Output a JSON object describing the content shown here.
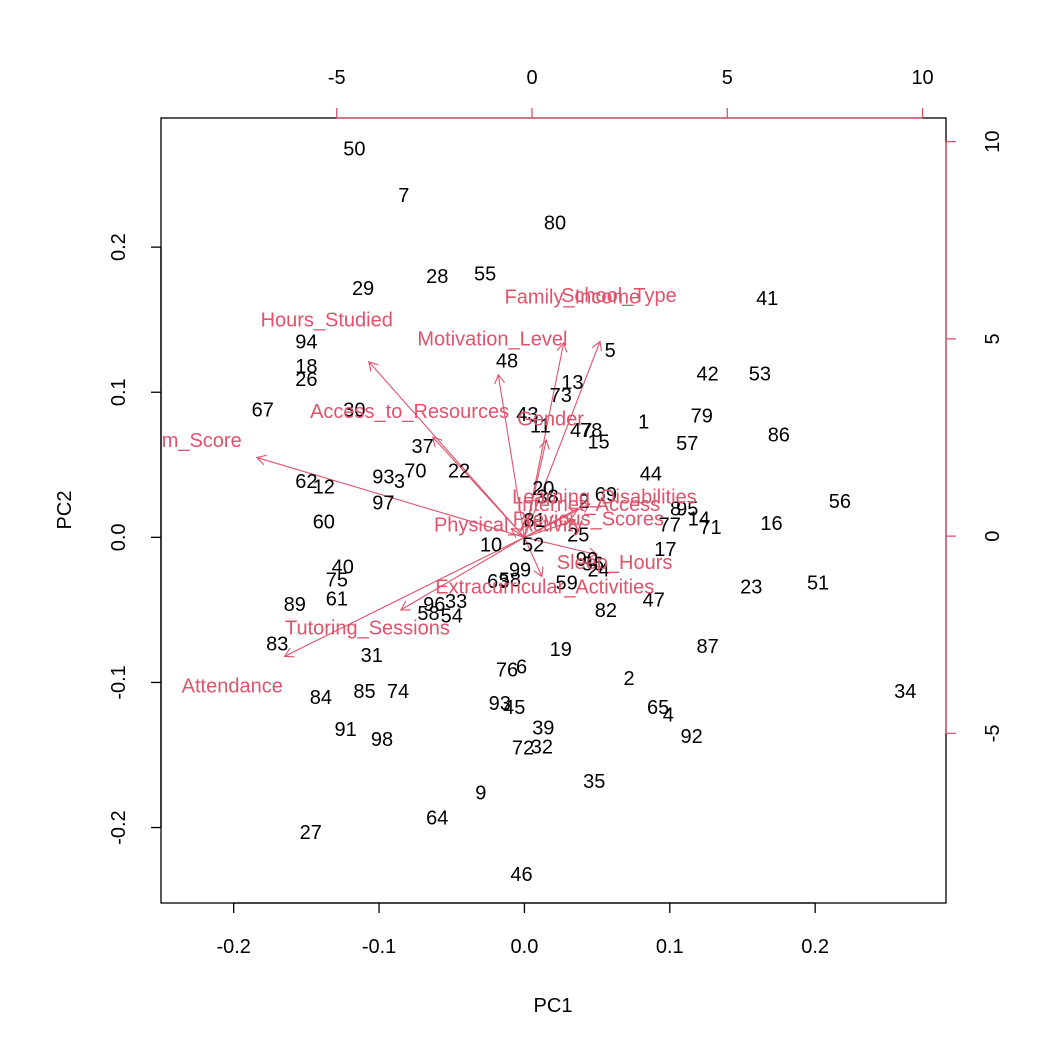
{
  "chart_data": {
    "type": "scatter",
    "subtype": "biplot",
    "xlabel": "PC1",
    "ylabel": "PC2",
    "xlim": [
      -0.25,
      0.29
    ],
    "ylim": [
      -0.252,
      0.289
    ],
    "top_lim": [
      -9.5,
      10.6
    ],
    "right_lim": [
      -9.3,
      10.6
    ],
    "bottom_ticks": [
      "-0.2",
      "-0.1",
      "0.0",
      "0.1",
      "0.2"
    ],
    "left_ticks": [
      "-0.2",
      "-0.1",
      "0.0",
      "0.1",
      "0.2"
    ],
    "top_ticks": [
      "-5",
      "0",
      "5",
      "10"
    ],
    "right_ticks": [
      "-5",
      "0",
      "5",
      "10"
    ],
    "arrow_color": "#DF536B",
    "point_color": "#000000",
    "points": [
      {
        "label": "50",
        "x": -0.117,
        "y": 0.268
      },
      {
        "label": "7",
        "x": -0.083,
        "y": 0.236
      },
      {
        "label": "80",
        "x": 0.021,
        "y": 0.217
      },
      {
        "label": "29",
        "x": -0.111,
        "y": 0.172
      },
      {
        "label": "28",
        "x": -0.06,
        "y": 0.18
      },
      {
        "label": "55",
        "x": -0.027,
        "y": 0.182
      },
      {
        "label": "41",
        "x": 0.167,
        "y": 0.165
      },
      {
        "label": "94",
        "x": -0.15,
        "y": 0.135
      },
      {
        "label": "18",
        "x": -0.15,
        "y": 0.118
      },
      {
        "label": "26",
        "x": -0.15,
        "y": 0.109
      },
      {
        "label": "48",
        "x": -0.012,
        "y": 0.122
      },
      {
        "label": "5",
        "x": 0.059,
        "y": 0.129
      },
      {
        "label": "13",
        "x": 0.033,
        "y": 0.107
      },
      {
        "label": "73",
        "x": 0.025,
        "y": 0.098
      },
      {
        "label": "42",
        "x": 0.126,
        "y": 0.113
      },
      {
        "label": "53",
        "x": 0.162,
        "y": 0.113
      },
      {
        "label": "67",
        "x": -0.18,
        "y": 0.088
      },
      {
        "label": "30",
        "x": -0.117,
        "y": 0.088
      },
      {
        "label": "43",
        "x": 0.002,
        "y": 0.085
      },
      {
        "label": "1",
        "x": 0.082,
        "y": 0.08
      },
      {
        "label": "79",
        "x": 0.122,
        "y": 0.084
      },
      {
        "label": "11",
        "x": 0.011,
        "y": 0.077
      },
      {
        "label": "47",
        "x": 0.039,
        "y": 0.074
      },
      {
        "label": "78",
        "x": 0.046,
        "y": 0.074
      },
      {
        "label": "15",
        "x": 0.051,
        "y": 0.066
      },
      {
        "label": "57",
        "x": 0.112,
        "y": 0.065
      },
      {
        "label": "86",
        "x": 0.175,
        "y": 0.071
      },
      {
        "label": "37",
        "x": -0.07,
        "y": 0.063
      },
      {
        "label": "70",
        "x": -0.075,
        "y": 0.046
      },
      {
        "label": "22",
        "x": -0.045,
        "y": 0.046
      },
      {
        "label": "93",
        "x": -0.097,
        "y": 0.042
      },
      {
        "label": "3",
        "x": -0.086,
        "y": 0.039
      },
      {
        "label": "62",
        "x": -0.15,
        "y": 0.039
      },
      {
        "label": "12",
        "x": -0.138,
        "y": 0.035
      },
      {
        "label": "44",
        "x": 0.087,
        "y": 0.044
      },
      {
        "label": "20",
        "x": 0.013,
        "y": 0.034
      },
      {
        "label": "38",
        "x": 0.016,
        "y": 0.028
      },
      {
        "label": "2",
        "x": 0.041,
        "y": 0.025
      },
      {
        "label": "69",
        "x": 0.056,
        "y": 0.03
      },
      {
        "label": "56",
        "x": 0.217,
        "y": 0.025
      },
      {
        "label": "97",
        "x": -0.097,
        "y": 0.024
      },
      {
        "label": "8",
        "x": 0.104,
        "y": 0.02
      },
      {
        "label": "95",
        "x": 0.112,
        "y": 0.02
      },
      {
        "label": "14",
        "x": 0.12,
        "y": 0.013
      },
      {
        "label": "60",
        "x": -0.138,
        "y": 0.011
      },
      {
        "label": "77",
        "x": 0.1,
        "y": 0.009
      },
      {
        "label": "71",
        "x": 0.128,
        "y": 0.007
      },
      {
        "label": "16",
        "x": 0.17,
        "y": 0.01
      },
      {
        "label": "81",
        "x": 0.007,
        "y": 0.012
      },
      {
        "label": "25",
        "x": 0.037,
        "y": 0.002
      },
      {
        "label": "10",
        "x": -0.023,
        "y": -0.005
      },
      {
        "label": "52",
        "x": 0.006,
        "y": -0.005
      },
      {
        "label": "17",
        "x": 0.097,
        "y": -0.008
      },
      {
        "label": "36",
        "x": 0.047,
        "y": -0.018
      },
      {
        "label": "24",
        "x": 0.051,
        "y": -0.022
      },
      {
        "label": "40",
        "x": -0.125,
        "y": -0.02
      },
      {
        "label": "99",
        "x": -0.003,
        "y": -0.022
      },
      {
        "label": "75",
        "x": -0.129,
        "y": -0.029
      },
      {
        "label": "63",
        "x": -0.018,
        "y": -0.03
      },
      {
        "label": "58",
        "x": -0.01,
        "y": -0.029
      },
      {
        "label": "59",
        "x": 0.029,
        "y": -0.031
      },
      {
        "label": "90",
        "x": 0.043,
        "y": -0.015
      },
      {
        "label": "23",
        "x": 0.156,
        "y": -0.034
      },
      {
        "label": "51",
        "x": 0.202,
        "y": -0.031
      },
      {
        "label": "61",
        "x": -0.129,
        "y": -0.042
      },
      {
        "label": "89",
        "x": -0.158,
        "y": -0.046
      },
      {
        "label": "96",
        "x": -0.062,
        "y": -0.046
      },
      {
        "label": "33",
        "x": -0.047,
        "y": -0.044
      },
      {
        "label": "58",
        "x": -0.066,
        "y": -0.052
      },
      {
        "label": "54",
        "x": -0.05,
        "y": -0.054
      },
      {
        "label": "82",
        "x": 0.056,
        "y": -0.05
      },
      {
        "label": "47",
        "x": 0.089,
        "y": -0.043
      },
      {
        "label": "83",
        "x": -0.17,
        "y": -0.073
      },
      {
        "label": "31",
        "x": -0.105,
        "y": -0.081
      },
      {
        "label": "19",
        "x": 0.025,
        "y": -0.077
      },
      {
        "label": "87",
        "x": 0.126,
        "y": -0.075
      },
      {
        "label": "76",
        "x": -0.012,
        "y": -0.091
      },
      {
        "label": "6",
        "x": -0.002,
        "y": -0.089
      },
      {
        "label": "2",
        "x": 0.072,
        "y": -0.097
      },
      {
        "label": "34",
        "x": 0.262,
        "y": -0.106
      },
      {
        "label": "84",
        "x": -0.14,
        "y": -0.11
      },
      {
        "label": "85",
        "x": -0.11,
        "y": -0.106
      },
      {
        "label": "74",
        "x": -0.087,
        "y": -0.106
      },
      {
        "label": "93",
        "x": -0.017,
        "y": -0.114
      },
      {
        "label": "45",
        "x": -0.007,
        "y": -0.117
      },
      {
        "label": "65",
        "x": 0.092,
        "y": -0.117
      },
      {
        "label": "4",
        "x": 0.099,
        "y": -0.122
      },
      {
        "label": "91",
        "x": -0.123,
        "y": -0.132
      },
      {
        "label": "98",
        "x": -0.098,
        "y": -0.139
      },
      {
        "label": "39",
        "x": 0.013,
        "y": -0.131
      },
      {
        "label": "92",
        "x": 0.115,
        "y": -0.137
      },
      {
        "label": "72",
        "x": -0.001,
        "y": -0.145
      },
      {
        "label": "32",
        "x": 0.012,
        "y": -0.144
      },
      {
        "label": "35",
        "x": 0.048,
        "y": -0.168
      },
      {
        "label": "9",
        "x": -0.03,
        "y": -0.176
      },
      {
        "label": "64",
        "x": -0.06,
        "y": -0.193
      },
      {
        "label": "27",
        "x": -0.147,
        "y": -0.203
      },
      {
        "label": "46",
        "x": -0.002,
        "y": -0.232
      }
    ],
    "variables": [
      {
        "name": "Hours_Studied",
        "x": -0.107,
        "y": 0.121,
        "lx": -0.136,
        "ly": 0.15
      },
      {
        "name": "Attendance",
        "x": -0.165,
        "y": -0.082,
        "lx": -0.201,
        "ly": -0.102
      },
      {
        "name": "m_Score",
        "x": -0.184,
        "y": 0.055,
        "lx": -0.222,
        "ly": 0.067
      },
      {
        "name": "Tutoring_Sessions",
        "x": -0.085,
        "y": -0.05,
        "lx": -0.108,
        "ly": -0.062
      },
      {
        "name": "Access_to_Resources",
        "x": -0.063,
        "y": 0.069,
        "lx": -0.079,
        "ly": 0.087
      },
      {
        "name": "Family_Income",
        "x": 0.027,
        "y": 0.134,
        "lx": 0.033,
        "ly": 0.166
      },
      {
        "name": "School_Type",
        "x": 0.052,
        "y": 0.135,
        "lx": 0.065,
        "ly": 0.167
      },
      {
        "name": "Motivation_Level",
        "x": -0.018,
        "y": 0.112,
        "lx": -0.022,
        "ly": 0.137
      },
      {
        "name": "Gender",
        "x": 0.015,
        "y": 0.067,
        "lx": 0.018,
        "ly": 0.082
      },
      {
        "name": "Learning_Disabilities",
        "x": 0.045,
        "y": 0.023,
        "lx": 0.055,
        "ly": 0.028
      },
      {
        "name": "Internet_Access",
        "x": 0.037,
        "y": 0.02,
        "lx": 0.044,
        "ly": 0.023
      },
      {
        "name": "Previous_Scores",
        "x": 0.035,
        "y": 0.012,
        "lx": 0.044,
        "ly": 0.013
      },
      {
        "name": "Physical_Activity",
        "x": -0.009,
        "y": 0.006,
        "lx": -0.011,
        "ly": 0.009
      },
      {
        "name": "Sleep_Hours",
        "x": 0.05,
        "y": -0.012,
        "lx": 0.062,
        "ly": -0.017
      },
      {
        "name": "Extracurricular_Activities",
        "x": 0.012,
        "y": -0.027,
        "lx": 0.014,
        "ly": -0.034
      }
    ]
  }
}
